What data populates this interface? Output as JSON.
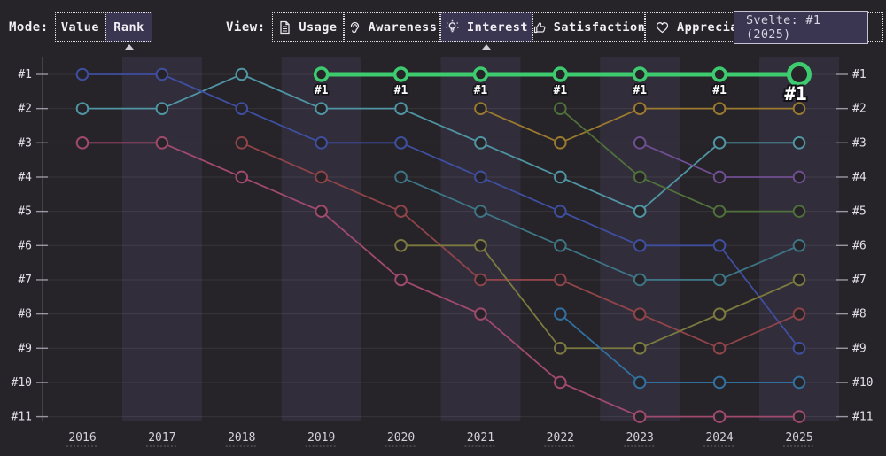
{
  "toolbar": {
    "mode_label": "Mode:",
    "mode_options": [
      {
        "label": "Value",
        "selected": false
      },
      {
        "label": "Rank",
        "selected": true
      }
    ],
    "view_label": "View:",
    "view_options": [
      {
        "label": "Usage",
        "icon": "document-icon",
        "selected": false
      },
      {
        "label": "Awareness",
        "icon": "ear-icon",
        "selected": false
      },
      {
        "label": "Interest",
        "icon": "lightbulb-icon",
        "selected": true
      },
      {
        "label": "Satisfaction",
        "icon": "thumbs-up-icon",
        "selected": false
      },
      {
        "label": "Appreciation",
        "icon": "heart-icon",
        "selected": false
      }
    ]
  },
  "tooltip": {
    "text": "Svelte: #1 (2025)"
  },
  "colors": {
    "background": "#262329",
    "band": "rgba(130,122,190,0.12)",
    "grid": "rgba(255,255,255,0.08)",
    "axis": "rgba(255,255,255,0.28)",
    "tick": "#9a97a2",
    "axis_text": "#e2dfe8",
    "year_text": "#d4d1da",
    "highlight": "#3ecb70",
    "selected_button_bg": "#3a3550"
  },
  "chart_data": {
    "type": "line",
    "subtype": "bump-rank",
    "x_labels": [
      "2016",
      "2017",
      "2018",
      "2019",
      "2020",
      "2021",
      "2022",
      "2023",
      "2024",
      "2025"
    ],
    "rank_labels": [
      "#1",
      "#2",
      "#3",
      "#4",
      "#5",
      "#6",
      "#7",
      "#8",
      "#9",
      "#10",
      "#11"
    ],
    "ylim": [
      1,
      11
    ],
    "grid": true,
    "legend": "none",
    "series": [
      {
        "id": "teal",
        "color": "#4f95a3",
        "highlighted": false,
        "ranks": [
          2,
          2,
          1,
          2,
          2,
          3,
          4,
          5,
          3,
          3
        ]
      },
      {
        "id": "indigo",
        "color": "#3f4fa0",
        "highlighted": false,
        "ranks": [
          1,
          1,
          2,
          3,
          3,
          4,
          5,
          6,
          6,
          9
        ]
      },
      {
        "id": "crimson",
        "color": "#a04a6d",
        "highlighted": false,
        "ranks": [
          3,
          3,
          4,
          5,
          7,
          8,
          10,
          11,
          11,
          11
        ]
      },
      {
        "id": "maroon",
        "color": "#8e4449",
        "highlighted": false,
        "ranks": [
          null,
          null,
          3,
          4,
          5,
          7,
          7,
          8,
          9,
          8
        ]
      },
      {
        "id": "darkcyan",
        "color": "#3d7585",
        "highlighted": false,
        "ranks": [
          null,
          null,
          null,
          null,
          4,
          5,
          6,
          7,
          7,
          6
        ]
      },
      {
        "id": "olive",
        "color": "#7b7a3f",
        "highlighted": false,
        "ranks": [
          null,
          null,
          null,
          null,
          6,
          6,
          9,
          9,
          8,
          7
        ]
      },
      {
        "id": "gold",
        "color": "#9a7a2f",
        "highlighted": false,
        "ranks": [
          null,
          null,
          null,
          null,
          null,
          2,
          3,
          2,
          2,
          2
        ]
      },
      {
        "id": "forest",
        "color": "#50703b",
        "highlighted": false,
        "ranks": [
          null,
          null,
          null,
          null,
          null,
          null,
          2,
          4,
          5,
          5
        ]
      },
      {
        "id": "azure",
        "color": "#31709f",
        "highlighted": false,
        "ranks": [
          null,
          null,
          null,
          null,
          null,
          null,
          8,
          10,
          10,
          10
        ]
      },
      {
        "id": "purple",
        "color": "#6f4e91",
        "highlighted": false,
        "ranks": [
          null,
          null,
          null,
          null,
          null,
          null,
          null,
          3,
          4,
          4
        ]
      },
      {
        "id": "svelte",
        "name": "Svelte",
        "color": "#3ecb70",
        "highlighted": true,
        "point_label": "#1",
        "ranks": [
          null,
          null,
          null,
          1,
          1,
          1,
          1,
          1,
          1,
          1
        ]
      }
    ]
  }
}
